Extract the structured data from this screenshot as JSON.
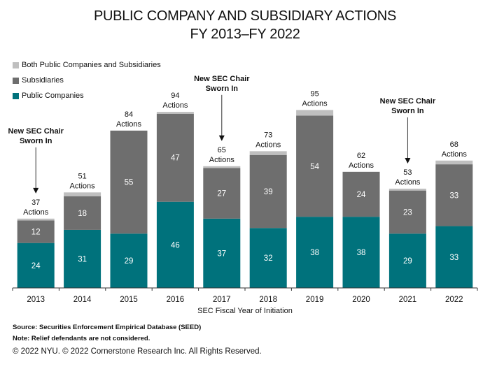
{
  "chart_data": {
    "type": "bar",
    "stacked": true,
    "title": "PUBLIC COMPANY AND SUBSIDIARY ACTIONS",
    "subtitle": "FY 2013–FY 2022",
    "xlabel": "SEC Fiscal Year of Initiation",
    "ylabel": "",
    "ylim": [
      0,
      100
    ],
    "grid": false,
    "legend_position": "top-left",
    "categories": [
      "2013",
      "2014",
      "2015",
      "2016",
      "2017",
      "2018",
      "2019",
      "2020",
      "2021",
      "2022"
    ],
    "series": [
      {
        "name": "Public Companies",
        "color": "#00727C",
        "values": [
          24,
          31,
          29,
          46,
          37,
          32,
          38,
          38,
          29,
          33
        ]
      },
      {
        "name": "Subsidiaries",
        "color": "#6E6E6E",
        "values": [
          12,
          18,
          55,
          47,
          27,
          39,
          54,
          24,
          23,
          33
        ]
      },
      {
        "name": "Both Public Companies and Subsidiaries",
        "color": "#BFBFBF",
        "values": [
          1,
          2,
          0,
          1,
          1,
          2,
          3,
          0,
          1,
          2
        ]
      }
    ],
    "totals": [
      37,
      51,
      84,
      94,
      65,
      73,
      95,
      62,
      53,
      68
    ],
    "total_suffix": "Actions",
    "annotations": [
      {
        "category": "2013",
        "text_line1": "New SEC Chair",
        "text_line2": "Sworn In"
      },
      {
        "category": "2017",
        "text_line1": "New SEC Chair",
        "text_line2": "Sworn In"
      },
      {
        "category": "2021",
        "text_line1": "New SEC Chair",
        "text_line2": "Sworn In"
      }
    ]
  },
  "legend": [
    {
      "label": "Both Public Companies and Subsidiaries",
      "color": "#BFBFBF"
    },
    {
      "label": "Subsidiaries",
      "color": "#6E6E6E"
    },
    {
      "label": "Public Companies",
      "color": "#00727C"
    }
  ],
  "footer": {
    "source": "Source: Securities Enforcement Empirical Database (SEED)",
    "note": "Note: Relief defendants are not considered.",
    "copyright": "© 2022 NYU. © 2022 Cornerstone Research Inc. All Rights Reserved."
  }
}
